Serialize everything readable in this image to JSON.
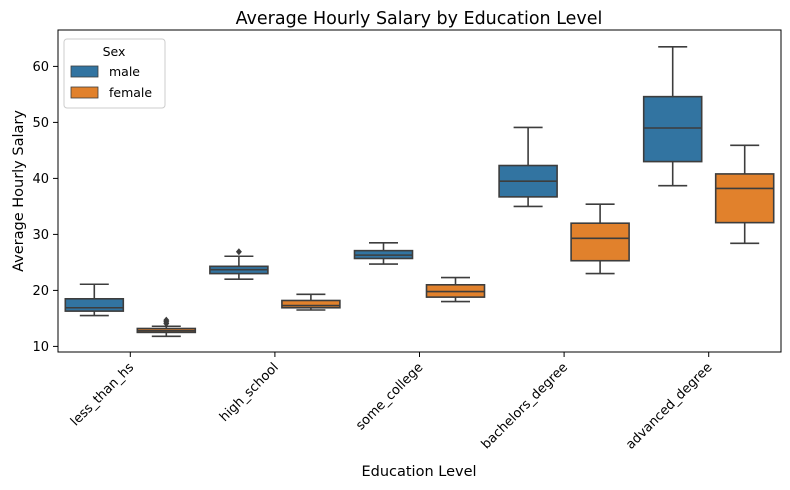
{
  "chart_data": {
    "type": "box",
    "title": "Average Hourly Salary by Education Level",
    "xlabel": "Education Level",
    "ylabel": "Average Hourly Salary",
    "ylim": [
      9,
      66.5
    ],
    "yticks": [
      10,
      20,
      30,
      40,
      50,
      60
    ],
    "categories": [
      "less_than_hs",
      "high_school",
      "some_college",
      "bachelors_degree",
      "advanced_degree"
    ],
    "legend": {
      "title": "Sex",
      "placement": "top-left"
    },
    "series": [
      {
        "name": "male",
        "color": "#3274a1",
        "boxes": [
          {
            "whislo": 15.5,
            "q1": 16.3,
            "med": 16.9,
            "q3": 18.5,
            "whishi": 21.1,
            "fliers": []
          },
          {
            "whislo": 22.0,
            "q1": 23.0,
            "med": 23.7,
            "q3": 24.3,
            "whishi": 26.1,
            "fliers": [
              26.9
            ]
          },
          {
            "whislo": 24.7,
            "q1": 25.7,
            "med": 26.3,
            "q3": 27.1,
            "whishi": 28.5,
            "fliers": []
          },
          {
            "whislo": 35.0,
            "q1": 36.7,
            "med": 39.5,
            "q3": 42.3,
            "whishi": 49.1,
            "fliers": []
          },
          {
            "whislo": 38.7,
            "q1": 43.0,
            "med": 49.0,
            "q3": 54.6,
            "whishi": 63.5,
            "fliers": []
          }
        ]
      },
      {
        "name": "female",
        "color": "#e1812c",
        "boxes": [
          {
            "whislo": 11.8,
            "q1": 12.5,
            "med": 12.8,
            "q3": 13.2,
            "whishi": 13.6,
            "fliers": [
              14.1,
              14.4,
              14.7
            ]
          },
          {
            "whislo": 16.5,
            "q1": 16.9,
            "med": 17.3,
            "q3": 18.2,
            "whishi": 19.3,
            "fliers": []
          },
          {
            "whislo": 18.0,
            "q1": 18.8,
            "med": 19.8,
            "q3": 21.0,
            "whishi": 22.3,
            "fliers": []
          },
          {
            "whislo": 23.0,
            "q1": 25.3,
            "med": 29.3,
            "q3": 32.0,
            "whishi": 35.4,
            "fliers": []
          },
          {
            "whislo": 28.4,
            "q1": 32.1,
            "med": 38.2,
            "q3": 40.8,
            "whishi": 45.9,
            "fliers": []
          }
        ]
      }
    ]
  }
}
